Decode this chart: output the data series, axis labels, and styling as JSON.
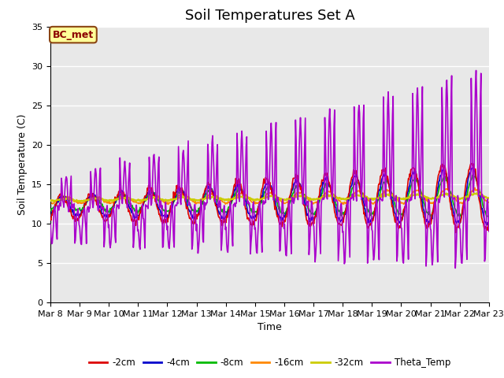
{
  "title": "Soil Temperatures Set A",
  "xlabel": "Time",
  "ylabel": "Soil Temperature (C)",
  "ylim": [
    0,
    35
  ],
  "annotation": "BC_met",
  "series_colors": {
    "-2cm": "#dd0000",
    "-4cm": "#0000cc",
    "-8cm": "#00bb00",
    "-16cm": "#ff8800",
    "-32cm": "#cccc00",
    "Theta_Temp": "#aa00cc"
  },
  "fig_bg_color": "#ffffff",
  "plot_bg_color": "#e8e8e8",
  "grid_color": "#ffffff",
  "xtick_labels": [
    "Mar 8",
    "Mar 9",
    "Mar 10",
    "Mar 11",
    "Mar 12",
    "Mar 13",
    "Mar 14",
    "Mar 15",
    "Mar 16",
    "Mar 17",
    "Mar 18",
    "Mar 19",
    "Mar 20",
    "Mar 21",
    "Mar 22",
    "Mar 23"
  ],
  "title_fontsize": 13,
  "axis_fontsize": 9,
  "tick_fontsize": 8
}
